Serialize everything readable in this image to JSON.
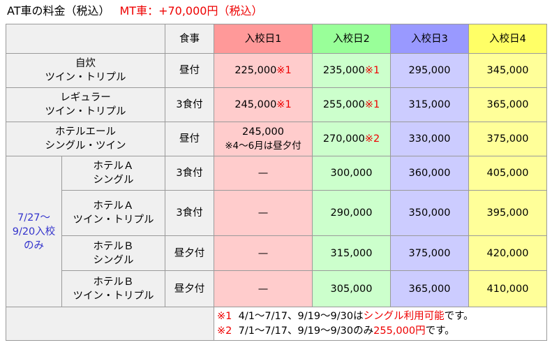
{
  "title": {
    "main": "AT車の料金（税込）",
    "mt": "MT車：+70,000円（税込）"
  },
  "header": {
    "meal": "食事",
    "dates": [
      "入校日1",
      "入校日2",
      "入校日3",
      "入校日4"
    ]
  },
  "group_label": [
    "7/27～",
    "9/20入校",
    "のみ"
  ],
  "rows": [
    {
      "room": [
        "自炊",
        "ツイン・トリプル"
      ],
      "meal": "昼付",
      "c1": "225,000",
      "c1_mark": "※1",
      "c2": "235,000",
      "c2_mark": "※1",
      "c3": "295,000",
      "c4": "345,000"
    },
    {
      "room": [
        "レギュラー",
        "ツイン・トリプル"
      ],
      "meal": "3食付",
      "c1": "245,000",
      "c1_mark": "※1",
      "c2": "255,000",
      "c2_mark": "※1",
      "c3": "315,000",
      "c4": "365,000"
    },
    {
      "room": [
        "ホテルエール",
        "シングル・ツイン"
      ],
      "meal": "昼付",
      "c1": "245,000",
      "c1_sub": "※4～6月は昼夕付",
      "c2": "270,000",
      "c2_mark": "※2",
      "c3": "330,000",
      "c4": "375,000"
    },
    {
      "room": [
        "ホテルＡ",
        "シングル"
      ],
      "meal": "3食付",
      "c1": "—",
      "c2": "300,000",
      "c3": "360,000",
      "c4": "405,000"
    },
    {
      "room": [
        "ホテルＡ",
        "ツイン・トリプル"
      ],
      "meal": "3食付",
      "c1": "—",
      "c2": "290,000",
      "c3": "350,000",
      "c4": "395,000"
    },
    {
      "room": [
        "ホテルＢ",
        "シングル"
      ],
      "meal": "昼夕付",
      "c1": "—",
      "c2": "315,000",
      "c3": "375,000",
      "c4": "420,000"
    },
    {
      "room": [
        "ホテルＢ",
        "ツイン・トリプル"
      ],
      "meal": "昼夕付",
      "c1": "—",
      "c2": "305,000",
      "c3": "365,000",
      "c4": "410,000"
    }
  ],
  "notes": [
    {
      "mark": "※1",
      "text": "4/1～7/17、9/19～9/30は",
      "highlight": "シングル利用可能",
      "tail": "です。"
    },
    {
      "mark": "※2",
      "text": "7/1～7/17、9/19～9/30のみ",
      "highlight": "255,000円",
      "tail": "です。"
    }
  ],
  "colors": {
    "head_1": "#ff9999",
    "head_2": "#99ff99",
    "head_3": "#9999ff",
    "head_4": "#ffff66",
    "cell_1": "#ffcccc",
    "cell_2": "#ccffcc",
    "cell_3": "#ccccff",
    "cell_4": "#ffff99",
    "accent_red": "#ee0000",
    "group_blue": "#3333cc"
  }
}
